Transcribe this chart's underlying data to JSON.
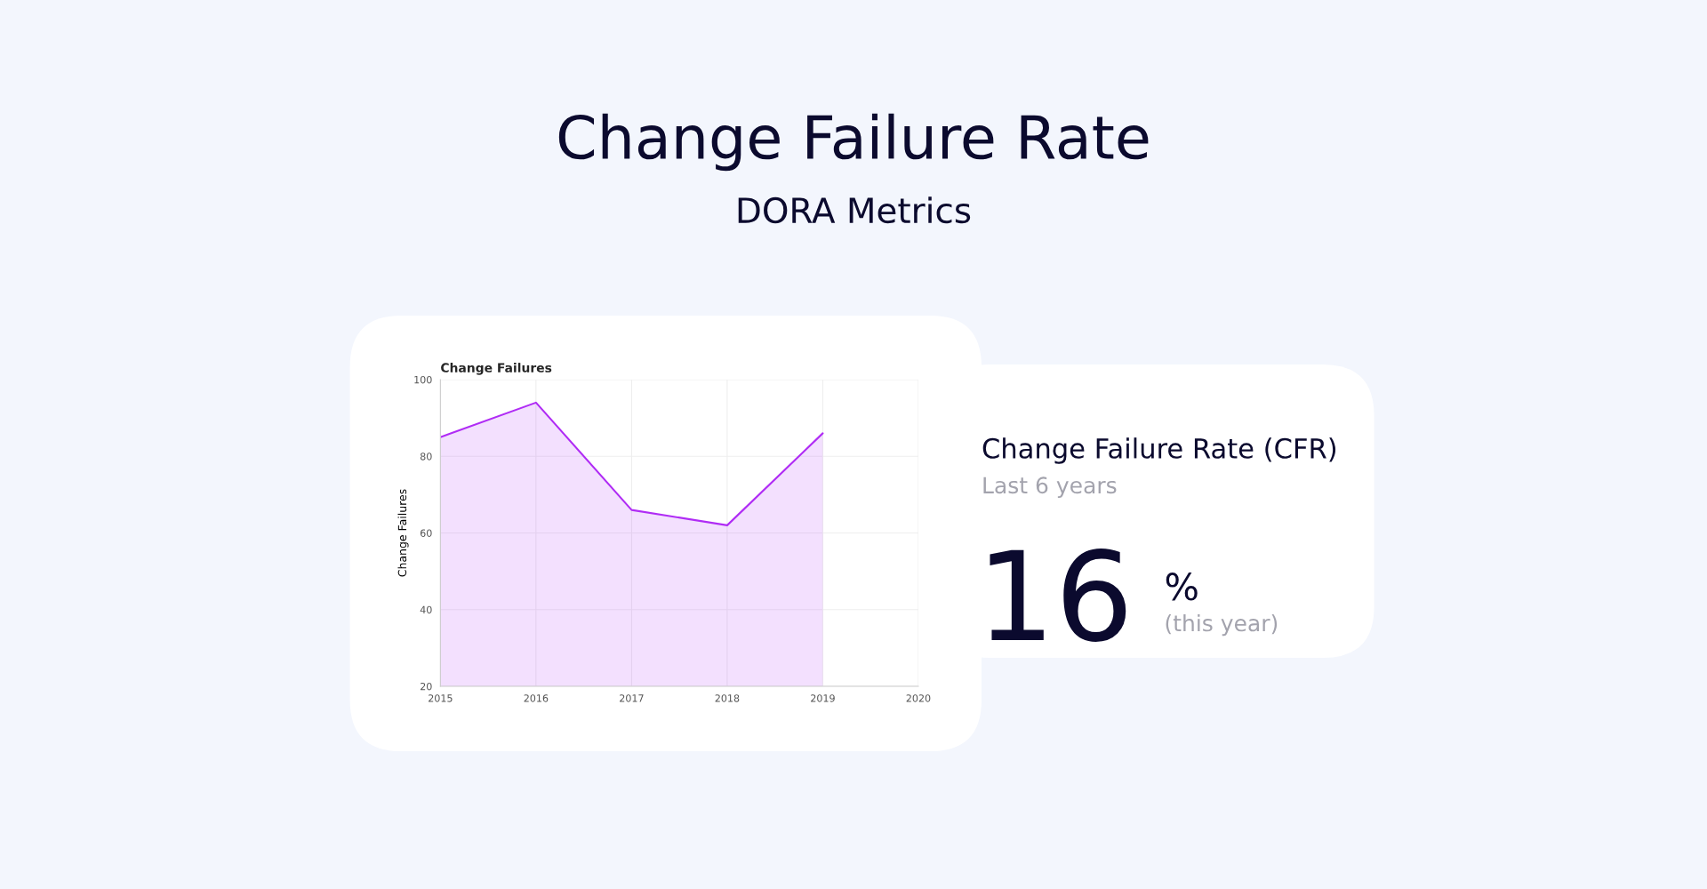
{
  "chart_data": [
    {
      "type": "other",
      "title": "Change Failure Rate",
      "subtitle": "DORA Metrics"
    },
    {
      "type": "area",
      "title": "Change Failures",
      "ylabel": "Change Failures",
      "x": [
        2015,
        2016,
        2017,
        2018,
        2019
      ],
      "series": [
        {
          "color": "#b02cf5",
          "values": [
            85,
            94,
            66,
            62,
            86
          ]
        }
      ],
      "xlim": [
        2015,
        2020
      ],
      "xticks": [
        2015,
        2016,
        2017,
        2018,
        2019,
        2020
      ],
      "ylim": [
        20,
        100
      ],
      "yticks": [
        20,
        40,
        60,
        80,
        100
      ],
      "grid": true
    },
    {
      "type": "other",
      "title": "Change Failure Rate (CFR)",
      "subtitle": "Last 6 years",
      "annotations": [
        "16",
        "%",
        "(this year)"
      ]
    }
  ]
}
